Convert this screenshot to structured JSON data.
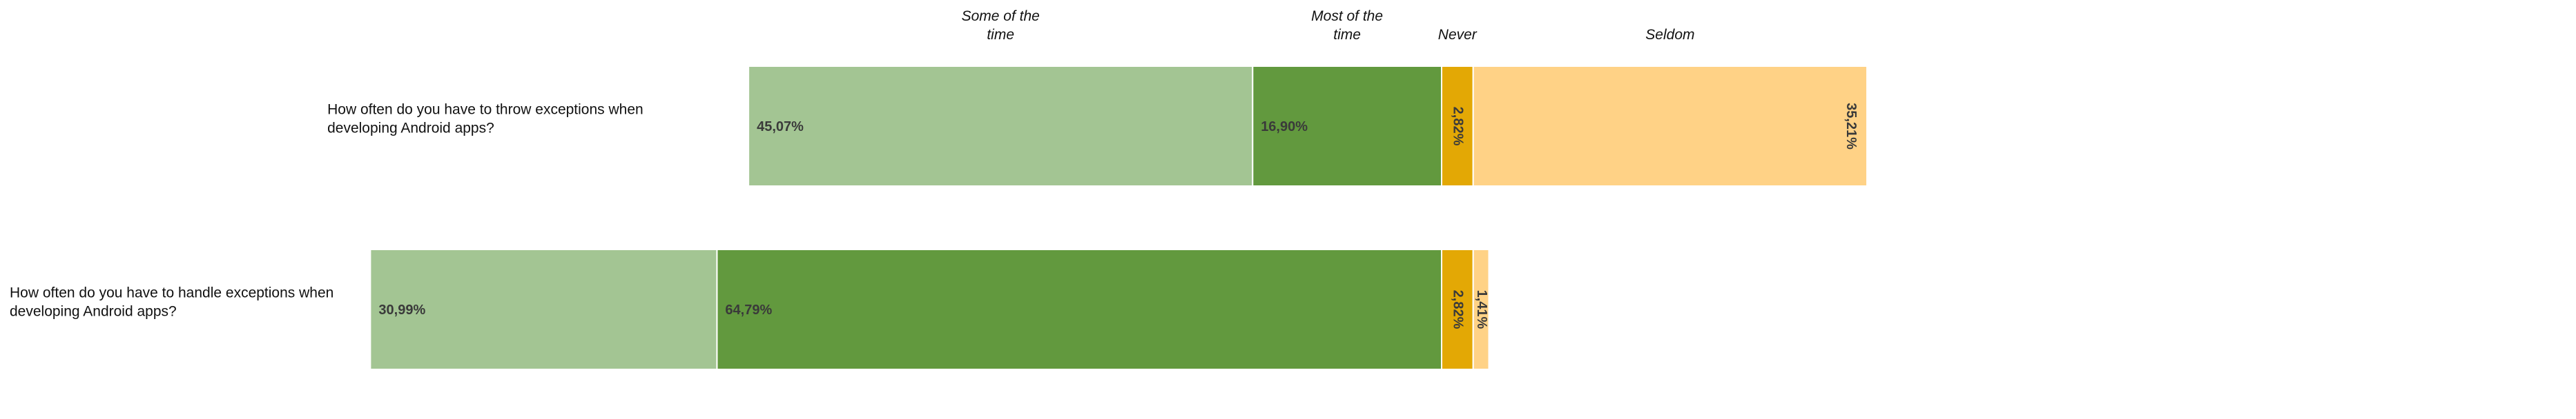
{
  "chart_data": {
    "type": "bar",
    "orientation": "horizontal",
    "stacked": true,
    "diverging": true,
    "title": "",
    "xlabel": "",
    "ylabel": "",
    "grid": false,
    "legend_position": "top",
    "categories": [
      "How often do you have to throw exceptions when developing Android apps?",
      "How often do you have to handle exceptions when developing Android apps?"
    ],
    "series": [
      {
        "name": "Some of the time",
        "color": "#a3c593",
        "values": [
          45.07,
          30.99
        ],
        "labels": [
          "45,07%",
          "30,99%"
        ]
      },
      {
        "name": "Most of the time",
        "color": "#62993e",
        "values": [
          16.9,
          64.79
        ],
        "labels": [
          "16,90%",
          "64,79%"
        ]
      },
      {
        "name": "Never",
        "color": "#e3a805",
        "values": [
          2.82,
          2.82
        ],
        "labels": [
          "2,82%",
          "2,82%"
        ]
      },
      {
        "name": "Seldom",
        "color": "#ffd286",
        "values": [
          35.21,
          1.41
        ],
        "labels": [
          "35,21%",
          "1,41%"
        ]
      }
    ]
  }
}
